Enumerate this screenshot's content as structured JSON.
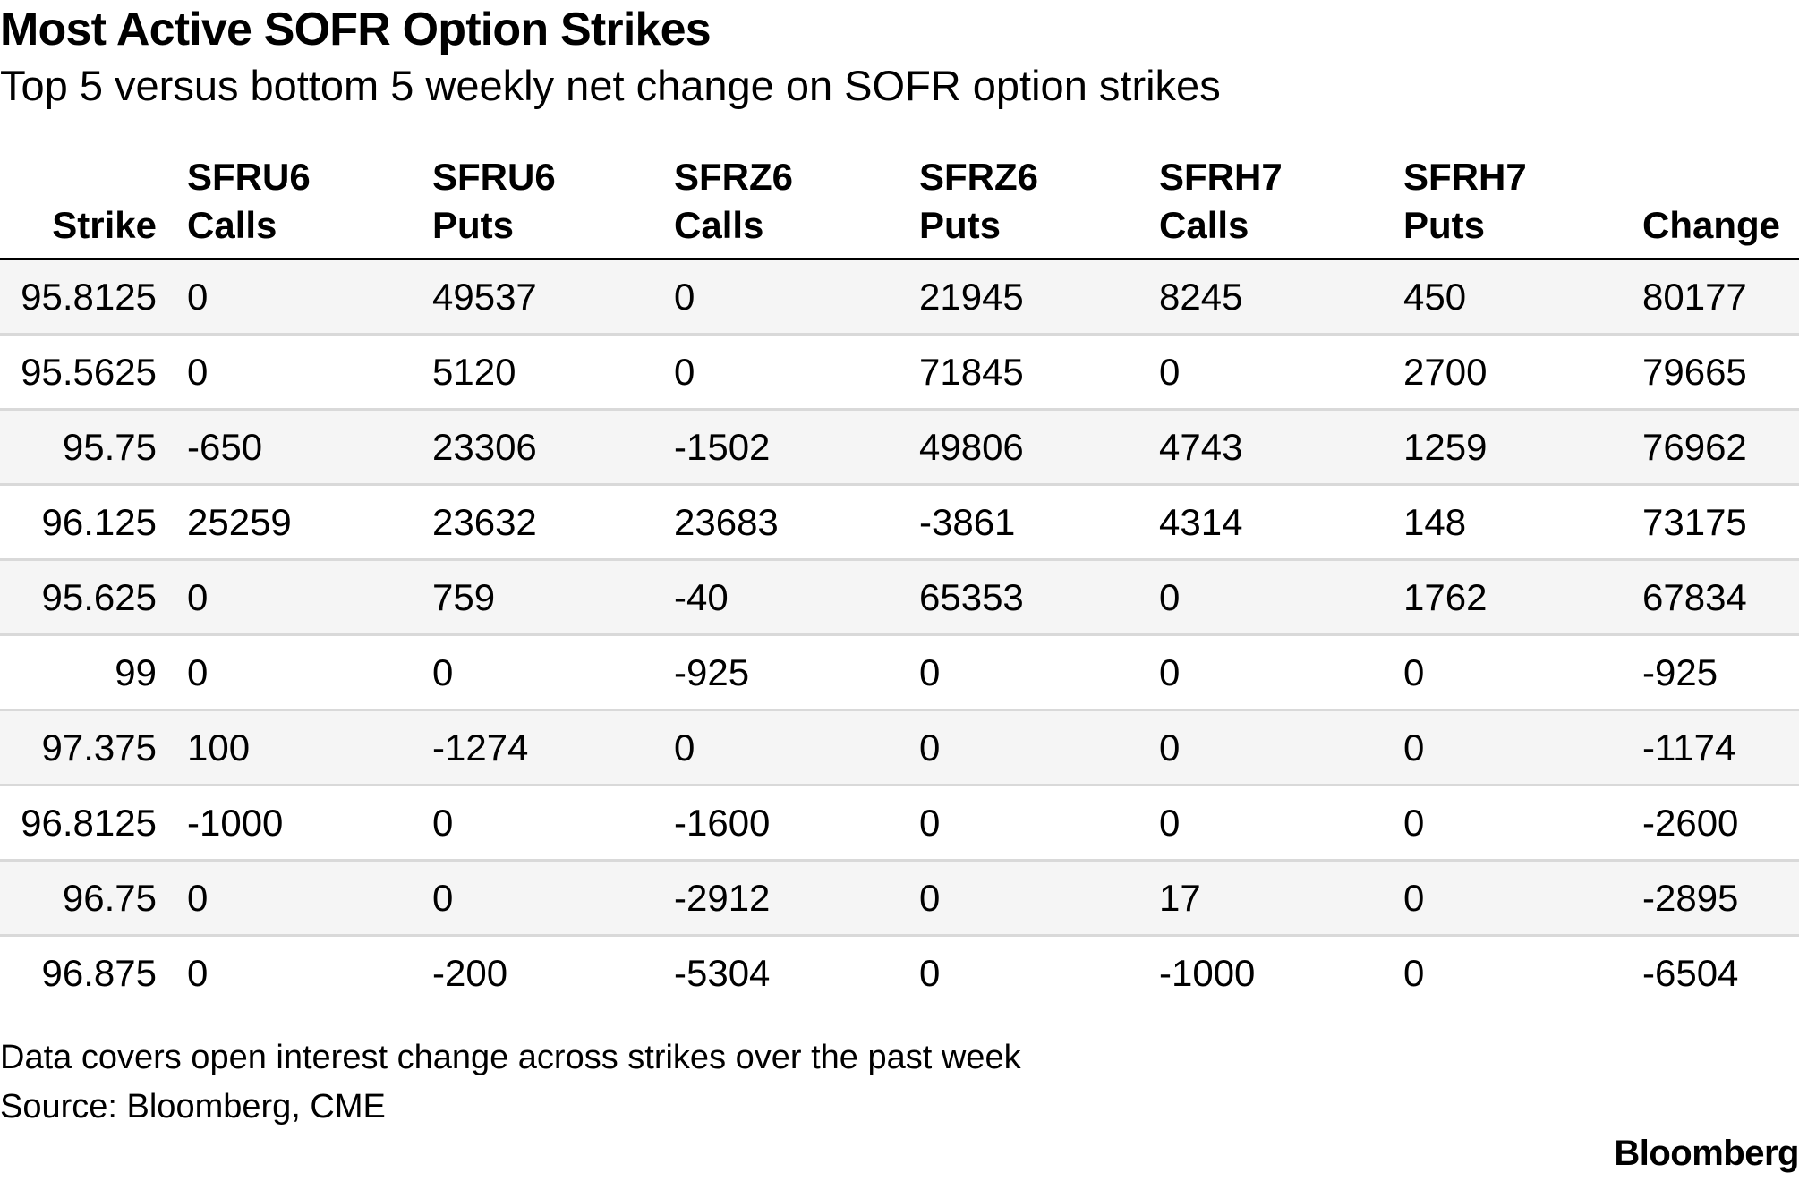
{
  "chart_data": {
    "type": "table",
    "title": "Most Active SOFR Option Strikes",
    "subtitle": "Top 5 versus bottom 5 weekly net change on SOFR option strikes",
    "columns": [
      {
        "line1": "",
        "line2": "Strike"
      },
      {
        "line1": "SFRU6",
        "line2": "Calls"
      },
      {
        "line1": "SFRU6",
        "line2": "Puts"
      },
      {
        "line1": "SFRZ6",
        "line2": "Calls"
      },
      {
        "line1": "SFRZ6",
        "line2": "Puts"
      },
      {
        "line1": "SFRH7",
        "line2": "Calls"
      },
      {
        "line1": "SFRH7",
        "line2": "Puts"
      },
      {
        "line1": "",
        "line2": "Change"
      }
    ],
    "rows": [
      [
        "95.8125",
        "0",
        "49537",
        "0",
        "21945",
        "8245",
        "450",
        "80177"
      ],
      [
        "95.5625",
        "0",
        "5120",
        "0",
        "71845",
        "0",
        "2700",
        "79665"
      ],
      [
        "95.75",
        "-650",
        "23306",
        "-1502",
        "49806",
        "4743",
        "1259",
        "76962"
      ],
      [
        "96.125",
        "25259",
        "23632",
        "23683",
        "-3861",
        "4314",
        "148",
        "73175"
      ],
      [
        "95.625",
        "0",
        "759",
        "-40",
        "65353",
        "0",
        "1762",
        "67834"
      ],
      [
        "99",
        "0",
        "0",
        "-925",
        "0",
        "0",
        "0",
        "-925"
      ],
      [
        "97.375",
        "100",
        "-1274",
        "0",
        "0",
        "0",
        "0",
        "-1174"
      ],
      [
        "96.8125",
        "-1000",
        "0",
        "-1600",
        "0",
        "0",
        "0",
        "-2600"
      ],
      [
        "96.75",
        "0",
        "0",
        "-2912",
        "0",
        "17",
        "0",
        "-2895"
      ],
      [
        "96.875",
        "0",
        "-200",
        "-5304",
        "0",
        "-1000",
        "0",
        "-6504"
      ]
    ],
    "note": "Data covers open interest change across strikes over the past week",
    "source": "Source: Bloomberg, CME"
  },
  "brand": "Bloomberg",
  "colors": {
    "text": "#000000",
    "header_rule": "#000000",
    "row_rule": "#d9d9d9",
    "row_shade": "#f5f5f5"
  }
}
